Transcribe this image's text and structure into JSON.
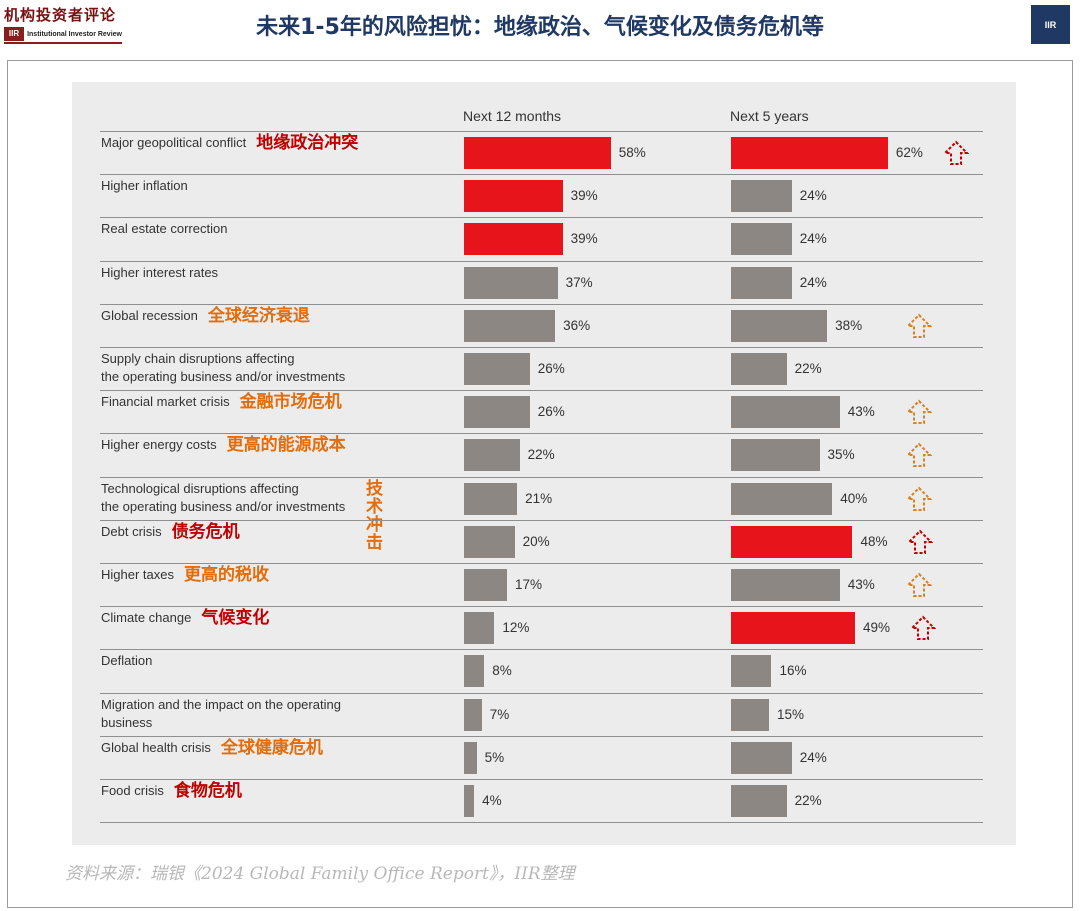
{
  "header": {
    "logo_cn": "机构投资者评论",
    "logo_mark": "IIR",
    "logo_en": "Institutional Investor Review",
    "title": "未来1-5年的风险担忧：地缘政治、气候变化及债务危机等",
    "badge_text": "IIR"
  },
  "colors": {
    "highlight": "#e8141b",
    "neutral": "#8c8783",
    "cn_red": "#c00000",
    "cn_orange": "#e46c0a",
    "arrow_red": "#c00000",
    "arrow_orange": "#d9801f"
  },
  "chart_data": {
    "type": "bar",
    "orientation": "horizontal",
    "series": [
      {
        "name": "Next 12 months",
        "values": [
          58,
          39,
          39,
          37,
          36,
          26,
          26,
          22,
          21,
          20,
          17,
          12,
          8,
          7,
          5,
          4
        ]
      },
      {
        "name": "Next 5 years",
        "values": [
          62,
          24,
          24,
          24,
          38,
          22,
          43,
          35,
          40,
          48,
          43,
          49,
          16,
          15,
          24,
          22
        ]
      }
    ],
    "value_suffix": "%",
    "categories": [
      {
        "en": "Major geopolitical conflict",
        "cn": "地缘政治冲突",
        "cn_color": "red",
        "highlight_12m": true,
        "highlight_5y": true,
        "arrow": "red"
      },
      {
        "en": "Higher inflation",
        "cn": "",
        "cn_color": "",
        "highlight_12m": true,
        "highlight_5y": false,
        "arrow": ""
      },
      {
        "en": "Real estate correction",
        "cn": "",
        "cn_color": "",
        "highlight_12m": true,
        "highlight_5y": false,
        "arrow": ""
      },
      {
        "en": "Higher interest rates",
        "cn": "",
        "cn_color": "",
        "highlight_12m": false,
        "highlight_5y": false,
        "arrow": ""
      },
      {
        "en": "Global recession",
        "cn": "全球经济衰退",
        "cn_color": "orange",
        "highlight_12m": false,
        "highlight_5y": false,
        "arrow": "orange"
      },
      {
        "en": "Supply chain disruptions affecting the operating business and/or investments",
        "cn": "",
        "cn_color": "",
        "highlight_12m": false,
        "highlight_5y": false,
        "arrow": ""
      },
      {
        "en": "Financial market crisis",
        "cn": "金融市场危机",
        "cn_color": "orange",
        "highlight_12m": false,
        "highlight_5y": false,
        "arrow": "orange"
      },
      {
        "en": "Higher energy costs",
        "cn": "更高的能源成本",
        "cn_color": "orange",
        "highlight_12m": false,
        "highlight_5y": false,
        "arrow": "orange"
      },
      {
        "en": "Technological disruptions affecting the operating business and/or investments",
        "cn": "技术冲击",
        "cn_color": "orange",
        "highlight_12m": false,
        "highlight_5y": false,
        "arrow": "orange"
      },
      {
        "en": "Debt crisis",
        "cn": "债务危机",
        "cn_color": "red",
        "highlight_12m": false,
        "highlight_5y": true,
        "arrow": "red"
      },
      {
        "en": "Higher taxes",
        "cn": "更高的税收",
        "cn_color": "orange",
        "highlight_12m": false,
        "highlight_5y": false,
        "arrow": "orange"
      },
      {
        "en": "Climate change",
        "cn": "气候变化",
        "cn_color": "red",
        "highlight_12m": false,
        "highlight_5y": true,
        "arrow": "red"
      },
      {
        "en": "Deflation",
        "cn": "",
        "cn_color": "",
        "highlight_12m": false,
        "highlight_5y": false,
        "arrow": ""
      },
      {
        "en": "Migration and the impact on the operating business",
        "cn": "",
        "cn_color": "",
        "highlight_12m": false,
        "highlight_5y": false,
        "arrow": ""
      },
      {
        "en": "Global health crisis",
        "cn": "全球健康危机",
        "cn_color": "orange",
        "highlight_12m": false,
        "highlight_5y": false,
        "arrow": ""
      },
      {
        "en": "Food crisis",
        "cn": "食物危机",
        "cn_color": "red",
        "highlight_12m": false,
        "highlight_5y": false,
        "arrow": ""
      }
    ]
  },
  "source": "资料来源：瑞银《2024 Global Family Office Report》，IIR整理"
}
